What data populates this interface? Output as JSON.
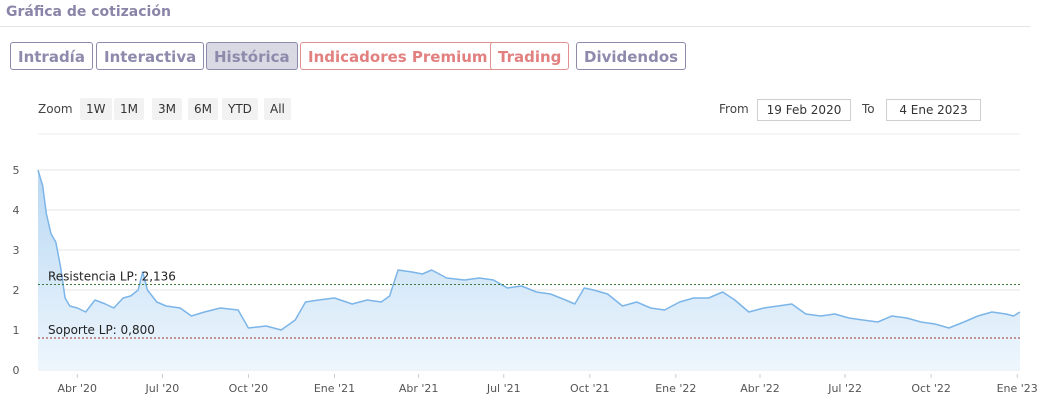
{
  "header": {
    "title": "Gráfica de cotización"
  },
  "tabs": [
    {
      "label": "Intradía",
      "style": "normal"
    },
    {
      "label": "Interactiva",
      "style": "normal"
    },
    {
      "label": "Histórica",
      "style": "active"
    },
    {
      "label": "Indicadores Premium",
      "style": "premium"
    },
    {
      "label": "Trading",
      "style": "premium"
    },
    {
      "label": "Dividendos",
      "style": "normal"
    }
  ],
  "zoom": {
    "label": "Zoom",
    "buttons": [
      "1W",
      "1M",
      "3M",
      "6M",
      "YTD",
      "All"
    ]
  },
  "range": {
    "from_label": "From",
    "from_value": "19 Feb 2020",
    "to_label": "To",
    "to_value": "4 Ene 2023"
  },
  "colors": {
    "line": "#7cb5e8",
    "fill_top": "#b9d8f3",
    "fill_bottom": "#eef6fd",
    "resistance": "#3a7a3a",
    "support": "#a03030",
    "accent": "#8e8aac",
    "premium": "#e28080"
  },
  "chart_data": {
    "type": "area",
    "x_range": [
      "2020-02-19",
      "2023-01-04"
    ],
    "ylim": [
      0,
      5
    ],
    "y_ticks": [
      "0",
      "1",
      "2",
      "3",
      "4",
      "5"
    ],
    "x_ticks": [
      {
        "label": "Abr '20",
        "date": "2020-04-01"
      },
      {
        "label": "Jul '20",
        "date": "2020-07-01"
      },
      {
        "label": "Oct '20",
        "date": "2020-10-01"
      },
      {
        "label": "Ene '21",
        "date": "2021-01-01"
      },
      {
        "label": "Abr '21",
        "date": "2021-04-01"
      },
      {
        "label": "Jul '21",
        "date": "2021-07-01"
      },
      {
        "label": "Oct '21",
        "date": "2021-10-01"
      },
      {
        "label": "Ene '22",
        "date": "2022-01-01"
      },
      {
        "label": "Abr '22",
        "date": "2022-04-01"
      },
      {
        "label": "Jul '22",
        "date": "2022-07-01"
      },
      {
        "label": "Oct '22",
        "date": "2022-10-01"
      },
      {
        "label": "Ene '23",
        "date": "2023-01-01"
      }
    ],
    "reference_lines": [
      {
        "label": "Resistencia LP: 2,136",
        "value": 2.136,
        "kind": "resistance"
      },
      {
        "label": "Soporte LP: 0,800",
        "value": 0.8,
        "kind": "support"
      }
    ],
    "series": [
      {
        "points": [
          [
            "2020-02-19",
            5.0
          ],
          [
            "2020-02-24",
            4.6
          ],
          [
            "2020-02-28",
            3.9
          ],
          [
            "2020-03-04",
            3.4
          ],
          [
            "2020-03-09",
            3.2
          ],
          [
            "2020-03-14",
            2.6
          ],
          [
            "2020-03-19",
            1.8
          ],
          [
            "2020-03-24",
            1.6
          ],
          [
            "2020-04-01",
            1.55
          ],
          [
            "2020-04-10",
            1.45
          ],
          [
            "2020-04-20",
            1.75
          ],
          [
            "2020-05-01",
            1.65
          ],
          [
            "2020-05-10",
            1.55
          ],
          [
            "2020-05-20",
            1.8
          ],
          [
            "2020-05-28",
            1.85
          ],
          [
            "2020-06-05",
            2.0
          ],
          [
            "2020-06-10",
            2.45
          ],
          [
            "2020-06-15",
            2.0
          ],
          [
            "2020-06-25",
            1.7
          ],
          [
            "2020-07-05",
            1.6
          ],
          [
            "2020-07-20",
            1.55
          ],
          [
            "2020-08-01",
            1.35
          ],
          [
            "2020-08-15",
            1.45
          ],
          [
            "2020-09-01",
            1.55
          ],
          [
            "2020-09-20",
            1.5
          ],
          [
            "2020-10-01",
            1.05
          ],
          [
            "2020-10-20",
            1.1
          ],
          [
            "2020-11-05",
            1.0
          ],
          [
            "2020-11-20",
            1.25
          ],
          [
            "2020-12-01",
            1.7
          ],
          [
            "2020-12-15",
            1.75
          ],
          [
            "2021-01-01",
            1.8
          ],
          [
            "2021-01-20",
            1.65
          ],
          [
            "2021-02-05",
            1.75
          ],
          [
            "2021-02-20",
            1.7
          ],
          [
            "2021-03-01",
            1.85
          ],
          [
            "2021-03-10",
            2.5
          ],
          [
            "2021-03-25",
            2.45
          ],
          [
            "2021-04-05",
            2.4
          ],
          [
            "2021-04-15",
            2.5
          ],
          [
            "2021-05-01",
            2.3
          ],
          [
            "2021-05-20",
            2.25
          ],
          [
            "2021-06-05",
            2.3
          ],
          [
            "2021-06-20",
            2.25
          ],
          [
            "2021-07-05",
            2.05
          ],
          [
            "2021-07-20",
            2.1
          ],
          [
            "2021-08-05",
            1.95
          ],
          [
            "2021-08-20",
            1.9
          ],
          [
            "2021-09-05",
            1.75
          ],
          [
            "2021-09-15",
            1.65
          ],
          [
            "2021-09-25",
            2.05
          ],
          [
            "2021-10-05",
            2.0
          ],
          [
            "2021-10-20",
            1.9
          ],
          [
            "2021-11-05",
            1.6
          ],
          [
            "2021-11-20",
            1.7
          ],
          [
            "2021-12-05",
            1.55
          ],
          [
            "2021-12-20",
            1.5
          ],
          [
            "2022-01-05",
            1.7
          ],
          [
            "2022-01-20",
            1.8
          ],
          [
            "2022-02-05",
            1.8
          ],
          [
            "2022-02-20",
            1.95
          ],
          [
            "2022-03-05",
            1.75
          ],
          [
            "2022-03-20",
            1.45
          ],
          [
            "2022-04-05",
            1.55
          ],
          [
            "2022-04-20",
            1.6
          ],
          [
            "2022-05-05",
            1.65
          ],
          [
            "2022-05-20",
            1.4
          ],
          [
            "2022-06-05",
            1.35
          ],
          [
            "2022-06-20",
            1.4
          ],
          [
            "2022-07-05",
            1.3
          ],
          [
            "2022-07-20",
            1.25
          ],
          [
            "2022-08-05",
            1.2
          ],
          [
            "2022-08-20",
            1.35
          ],
          [
            "2022-09-05",
            1.3
          ],
          [
            "2022-09-20",
            1.2
          ],
          [
            "2022-10-05",
            1.15
          ],
          [
            "2022-10-20",
            1.05
          ],
          [
            "2022-11-05",
            1.2
          ],
          [
            "2022-11-20",
            1.35
          ],
          [
            "2022-12-05",
            1.45
          ],
          [
            "2022-12-20",
            1.4
          ],
          [
            "2022-12-28",
            1.35
          ],
          [
            "2023-01-04",
            1.45
          ]
        ]
      }
    ]
  }
}
